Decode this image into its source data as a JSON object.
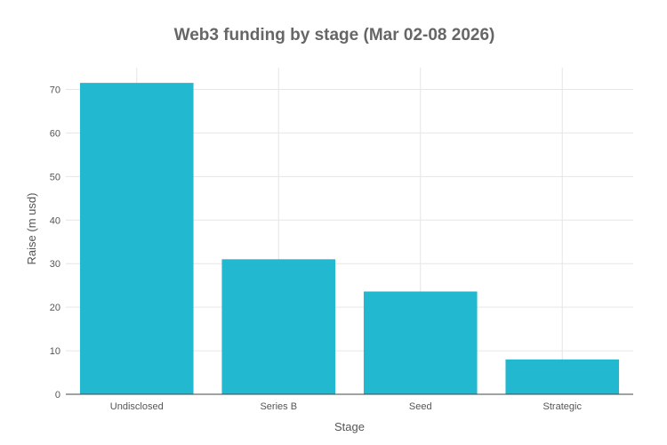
{
  "chart_data": {
    "type": "bar",
    "title": "Web3 funding by stage (Mar 02-08 2026)",
    "xlabel": "Stage",
    "ylabel": "Raise (m usd)",
    "categories": [
      "Undisclosed",
      "Series B",
      "Seed",
      "Strategic"
    ],
    "values": [
      71.5,
      31,
      23.6,
      8
    ],
    "ylim": [
      0,
      75
    ],
    "yticks": [
      0,
      10,
      20,
      30,
      40,
      50,
      60,
      70
    ],
    "grid": true,
    "bar_color": "#22b8cf"
  }
}
